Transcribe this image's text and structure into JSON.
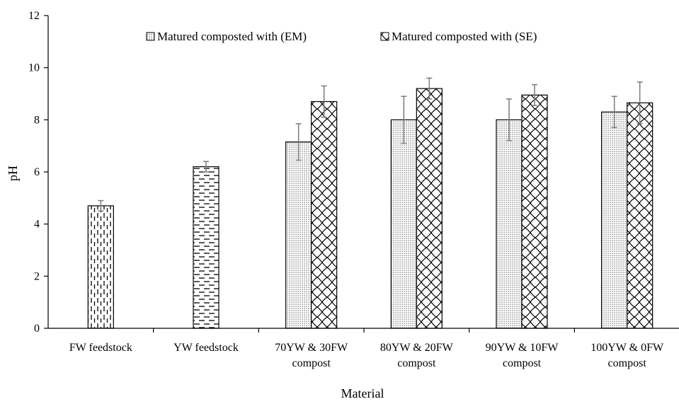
{
  "chart_data": {
    "type": "bar",
    "title": "",
    "xlabel": "Material",
    "ylabel": "pH",
    "ylim": [
      0,
      12
    ],
    "yticks": [
      0,
      2,
      4,
      6,
      8,
      10,
      12
    ],
    "grid": false,
    "legend_position": "top-center",
    "categories": [
      [
        "FW feedstock"
      ],
      [
        "YW feedstock"
      ],
      [
        "70YW & 30FW",
        "compost"
      ],
      [
        "80YW & 20FW",
        "compost"
      ],
      [
        "90YW & 10FW",
        "compost"
      ],
      [
        "100YW & 0FW",
        "compost"
      ]
    ],
    "feedstock": {
      "values": [
        4.7,
        6.2
      ],
      "errors": [
        0.2,
        0.2
      ],
      "patterns": [
        "vertical-dashes",
        "horizontal-dashes"
      ]
    },
    "series": [
      {
        "name": "Matured composted with (EM)",
        "pattern": "dots",
        "values": [
          null,
          null,
          7.15,
          8.0,
          8.0,
          8.3
        ],
        "errors": [
          null,
          null,
          0.7,
          0.9,
          0.8,
          0.6
        ]
      },
      {
        "name": "Matured composted with (SE)",
        "pattern": "wave",
        "values": [
          null,
          null,
          8.7,
          9.2,
          8.95,
          8.65
        ],
        "errors": [
          null,
          null,
          0.6,
          0.4,
          0.4,
          0.8
        ]
      }
    ]
  }
}
